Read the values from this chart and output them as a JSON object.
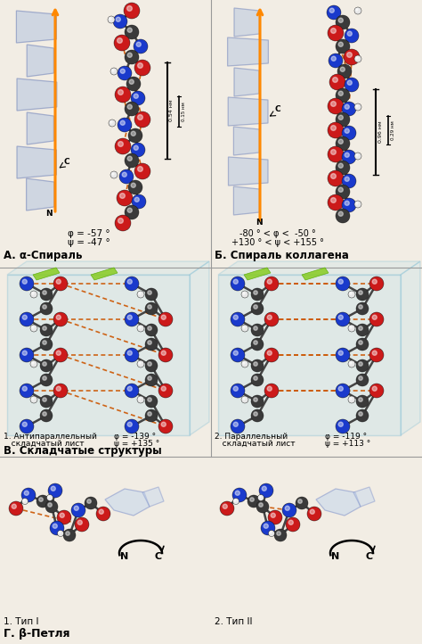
{
  "bg_color": "#f2ede4",
  "atom_colors": {
    "C": "#3a3a3a",
    "N": "#1a3acc",
    "O": "#cc1a1a",
    "H": "#e8e8e8"
  },
  "hbond_color": "#cc5500",
  "arrow_color": "#ff8800",
  "sheet_edge": "#55aacc",
  "sheet_face": "#aaddee",
  "helix_face": "#b8c8e0",
  "helix_edge": "#7788bb",
  "green_arrow": "#66bb22",
  "divider": "#999999",
  "sections": {
    "A_label": "А. α-Спираль",
    "B_label": "Б. Спираль коллагена",
    "V_label": "В. Складчатые структуры",
    "G_label": "Г. β-Петля",
    "V1_sub": "1. Антипараллельный\n   складчатый лист",
    "V2_sub": "2. Параллельный\n   складчатый лист",
    "G1_sub": "1. Тип I",
    "G2_sub": "2. Тип II",
    "A_phi": "φ = -57 °",
    "A_psi": "ψ = -47 °",
    "B_phi": "-80 ° < φ <  -50 °",
    "B_psi": "+130 ° < ψ < +155 °",
    "V1_phi": "φ = -139 °",
    "V1_psi": "ψ = +135 °",
    "V2_phi": "φ = -119 °",
    "V2_psi": "ψ = +113 °"
  }
}
